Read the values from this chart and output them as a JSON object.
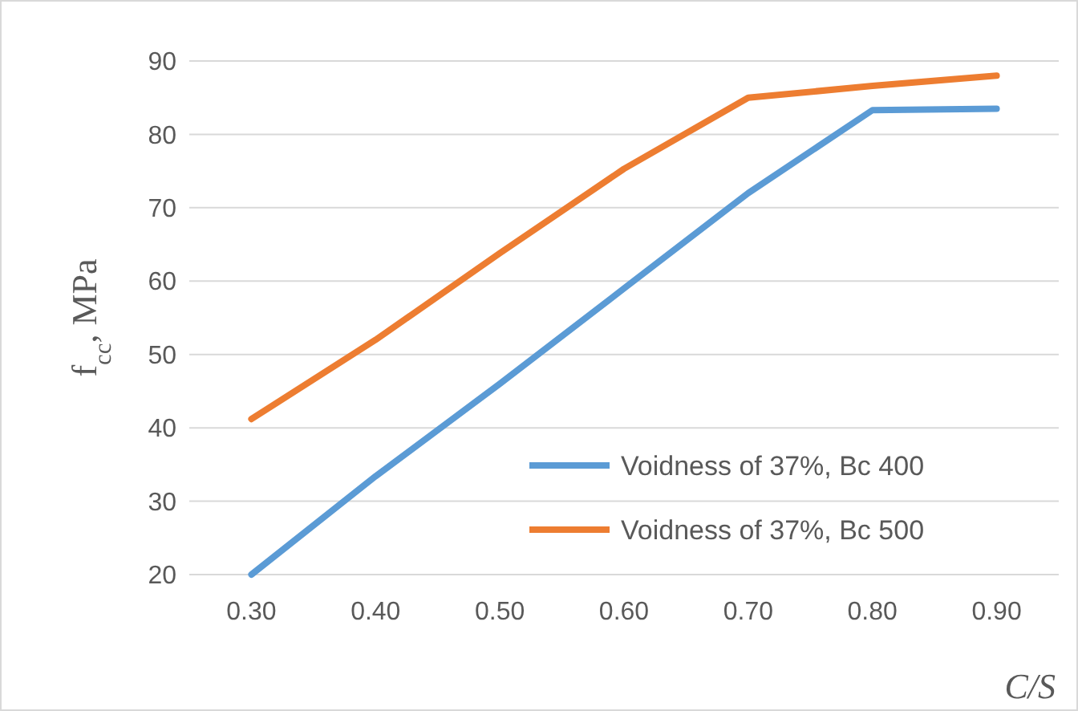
{
  "chart_data": {
    "type": "line",
    "xlabel": "C/S",
    "ylabel": "f$_{cc}$, MPa",
    "categories": [
      "0.30",
      "0.40",
      "0.50",
      "0.60",
      "0.70",
      "0.80",
      "0.90"
    ],
    "series": [
      {
        "name": "Voidness of 37%, Bc 400",
        "color": "#5b9bd5",
        "values": [
          20,
          33.4,
          46,
          59,
          72,
          83.3,
          83.5
        ]
      },
      {
        "name": "Voidness of 37%, Bc 500",
        "color": "#ed7d31",
        "values": [
          41.2,
          52,
          63.8,
          75.3,
          85,
          86.6,
          88
        ]
      }
    ],
    "ylim": [
      20,
      90
    ],
    "yticks": [
      20,
      30,
      40,
      50,
      60,
      70,
      80,
      90
    ],
    "grid": "y",
    "legend": "bottom right",
    "line_style": "solid"
  }
}
